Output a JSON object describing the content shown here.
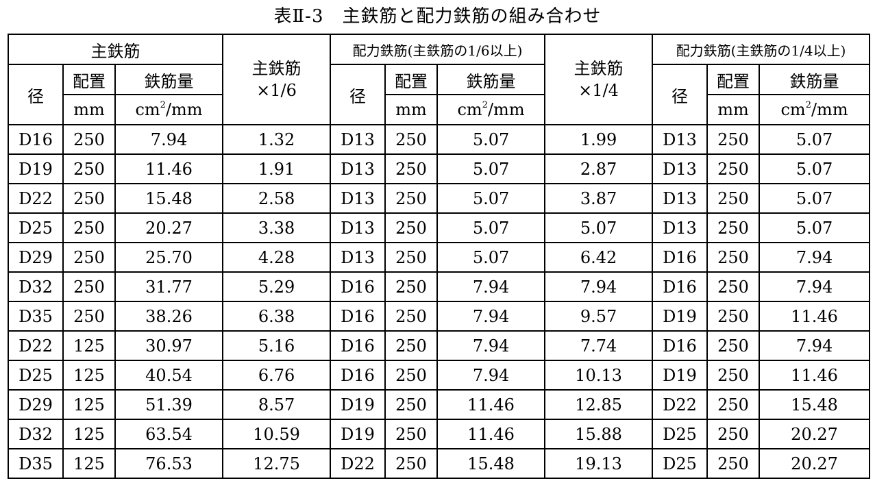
{
  "title": "表Ⅱ-3　主鉄筋と配力鉄筋の組み合わせ",
  "headers": {
    "main_bar": "主鉄筋",
    "main_x16_line1": "主鉄筋",
    "main_x16_line2": "×1/6",
    "dist_16": "配力鉄筋(主鉄筋の1/6以上)",
    "main_x14_line1": "主鉄筋",
    "main_x14_line2": "×1/4",
    "dist_14": "配力鉄筋(主鉄筋の1/4以上)",
    "diameter": "径",
    "spacing": "配置",
    "spacing_unit": "mm",
    "amount": "鉄筋量",
    "amount_unit_base": "cm",
    "amount_unit_exp": "2",
    "amount_unit_rest": "/mm"
  },
  "rows": [
    [
      "D16",
      "250",
      "7.94",
      "1.32",
      "D13",
      "250",
      "5.07",
      "1.99",
      "D13",
      "250",
      "5.07"
    ],
    [
      "D19",
      "250",
      "11.46",
      "1.91",
      "D13",
      "250",
      "5.07",
      "2.87",
      "D13",
      "250",
      "5.07"
    ],
    [
      "D22",
      "250",
      "15.48",
      "2.58",
      "D13",
      "250",
      "5.07",
      "3.87",
      "D13",
      "250",
      "5.07"
    ],
    [
      "D25",
      "250",
      "20.27",
      "3.38",
      "D13",
      "250",
      "5.07",
      "5.07",
      "D13",
      "250",
      "5.07"
    ],
    [
      "D29",
      "250",
      "25.70",
      "4.28",
      "D13",
      "250",
      "5.07",
      "6.42",
      "D16",
      "250",
      "7.94"
    ],
    [
      "D32",
      "250",
      "31.77",
      "5.29",
      "D16",
      "250",
      "7.94",
      "7.94",
      "D16",
      "250",
      "7.94"
    ],
    [
      "D35",
      "250",
      "38.26",
      "6.38",
      "D16",
      "250",
      "7.94",
      "9.57",
      "D19",
      "250",
      "11.46"
    ],
    [
      "D22",
      "125",
      "30.97",
      "5.16",
      "D16",
      "250",
      "7.94",
      "7.74",
      "D16",
      "250",
      "7.94"
    ],
    [
      "D25",
      "125",
      "40.54",
      "6.76",
      "D16",
      "250",
      "7.94",
      "10.13",
      "D19",
      "250",
      "11.46"
    ],
    [
      "D29",
      "125",
      "51.39",
      "8.57",
      "D19",
      "250",
      "11.46",
      "12.85",
      "D22",
      "250",
      "15.48"
    ],
    [
      "D32",
      "125",
      "63.54",
      "10.59",
      "D19",
      "250",
      "11.46",
      "15.88",
      "D25",
      "250",
      "20.27"
    ],
    [
      "D35",
      "125",
      "76.53",
      "12.75",
      "D22",
      "250",
      "15.48",
      "19.13",
      "D25",
      "250",
      "20.27"
    ]
  ]
}
